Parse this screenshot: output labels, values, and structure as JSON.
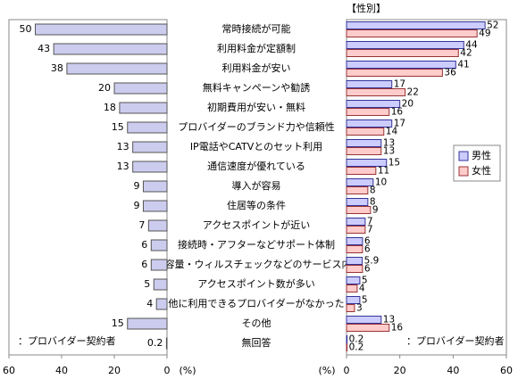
{
  "chart_data": [
    {
      "type": "bar",
      "orientation": "horizontal",
      "x_reversed": true,
      "note": "：プロバイダー契約者",
      "unit_label": "(%)",
      "categories": [
        "常時接続が可能",
        "利用料金が定額制",
        "利用料金が安い",
        "無料キャンペーンや勧誘",
        "初期費用が安い・無料",
        "プロバイダーのブランド力や信頼性",
        "IP電話やCATVとのセット利用",
        "通信速度が優れている",
        "導入が容易",
        "住居等の条件",
        "アクセスポイントが近い",
        "接続時・アフターなどサポート体制",
        "HP容量・ウィルスチェックなどのサービス内容",
        "アクセスポイント数が多い",
        "他に利用できるプロバイダーがなかった",
        "その他",
        "無回答"
      ],
      "values": [
        50,
        43,
        38,
        20,
        18,
        15,
        13,
        13,
        9,
        9,
        7,
        6,
        6,
        5,
        4,
        15,
        0.2
      ],
      "color": "#ccccee",
      "xlim": [
        0,
        60
      ],
      "xticks": [
        0,
        20,
        40,
        60
      ]
    },
    {
      "type": "bar",
      "orientation": "horizontal",
      "title": "【性別】",
      "note": "：プロバイダー契約者",
      "unit_label": "(%)",
      "legend": "right",
      "series": [
        {
          "name": "男性",
          "color": "#ccccff",
          "values": [
            52,
            44,
            41,
            17,
            20,
            17,
            13,
            15,
            10,
            8,
            7,
            6,
            5.9,
            5,
            5,
            13,
            0.2
          ]
        },
        {
          "name": "女性",
          "color": "#ffcccc",
          "values": [
            49,
            42,
            36,
            22,
            16,
            14,
            13,
            11,
            8,
            9,
            7,
            6,
            6,
            4,
            3,
            16,
            0.2
          ]
        }
      ],
      "xlim": [
        0,
        60
      ],
      "xticks": [
        0,
        20,
        40,
        60
      ]
    }
  ]
}
